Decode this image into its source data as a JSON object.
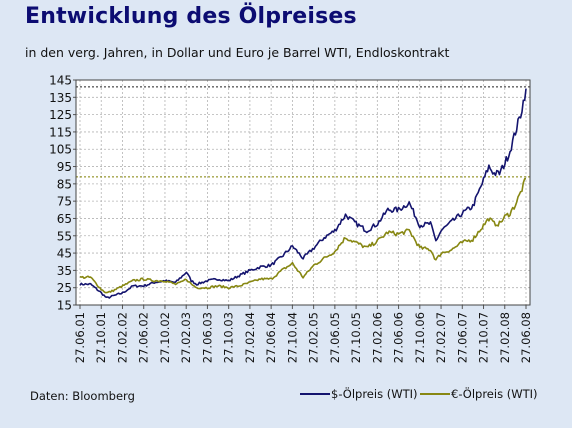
{
  "page": {
    "title": "Entwicklung des Ölpreises",
    "subtitle": "in den verg. Jahren, in Dollar und Euro je Barrel WTI, Endloskontrakt",
    "source": "Daten: Bloomberg"
  },
  "colors": {
    "background": "#dde7f4",
    "title": "#0c0c72",
    "plot_bg": "#ffffff",
    "grid": "#b4b4b4",
    "reference_line": "#808000",
    "usd": "#14146e",
    "eur": "#878712"
  },
  "chart_data": {
    "type": "line",
    "title": "Entwicklung des Ölpreises",
    "subtitle": "in den verg. Jahren, in Dollar und Euro je Barrel WTI, Endloskontrakt",
    "xlabel": "",
    "ylabel": "",
    "ylim": [
      15,
      145
    ],
    "y_ticks": [
      15,
      25,
      35,
      45,
      55,
      65,
      75,
      85,
      95,
      105,
      115,
      125,
      135,
      145
    ],
    "x_tick_labels": [
      "27.06.01",
      "27.10.01",
      "27.02.02",
      "27.06.02",
      "27.10.02",
      "27.02.03",
      "27.06.03",
      "27.10.03",
      "27.02.04",
      "27.06.04",
      "27.10.04",
      "27.02.05",
      "27.06.05",
      "27.10.05",
      "27.02.06",
      "27.06.06",
      "27.10.06",
      "27.02.07",
      "27.06.07",
      "27.10.07",
      "27.02.08",
      "27.06.08"
    ],
    "grid": true,
    "legend_position": "bottom-right",
    "reference_lines": [
      {
        "y": 141,
        "series": "$-Ölpreis (WTI)"
      },
      {
        "y": 89,
        "series": "€-Ölpreis (WTI)"
      }
    ],
    "series": [
      {
        "name": "$-Ölpreis (WTI)",
        "color": "#14146e",
        "x": [
          "27.06.01",
          "27.08.01",
          "27.10.01",
          "27.11.01",
          "27.12.01",
          "27.02.02",
          "27.04.02",
          "27.06.02",
          "27.08.02",
          "27.10.02",
          "27.12.02",
          "27.01.03",
          "27.02.03",
          "27.03.03",
          "27.04.03",
          "27.06.03",
          "27.08.03",
          "27.10.03",
          "27.12.03",
          "27.02.04",
          "27.04.04",
          "27.06.04",
          "27.08.04",
          "27.10.04",
          "27.12.04",
          "27.02.05",
          "27.04.05",
          "27.06.05",
          "27.08.05",
          "27.10.05",
          "27.12.05",
          "27.02.06",
          "27.04.06",
          "27.06.06",
          "27.08.06",
          "27.10.06",
          "27.12.06",
          "27.01.07",
          "27.02.07",
          "27.04.07",
          "27.06.07",
          "27.08.07",
          "27.10.07",
          "27.11.07",
          "27.12.07",
          "27.01.08",
          "27.02.08",
          "27.03.08",
          "27.04.08",
          "27.05.08",
          "27.06.08"
        ],
        "values": [
          27,
          27,
          22,
          19,
          20,
          22,
          26,
          26,
          28,
          29,
          28,
          31,
          34,
          29,
          27,
          29,
          30,
          29,
          32,
          35,
          37,
          38,
          43,
          49,
          42,
          48,
          54,
          58,
          67,
          62,
          58,
          62,
          70,
          70,
          74,
          61,
          62,
          52,
          58,
          63,
          68,
          72,
          87,
          95,
          91,
          91,
          97,
          104,
          115,
          125,
          140
        ]
      },
      {
        "name": "€-Ölpreis (WTI)",
        "color": "#878712",
        "x": [
          "27.06.01",
          "27.08.01",
          "27.10.01",
          "27.11.01",
          "27.12.01",
          "27.02.02",
          "27.04.02",
          "27.06.02",
          "27.08.02",
          "27.10.02",
          "27.12.02",
          "27.01.03",
          "27.02.03",
          "27.03.03",
          "27.04.03",
          "27.06.03",
          "27.08.03",
          "27.10.03",
          "27.12.03",
          "27.02.04",
          "27.04.04",
          "27.06.04",
          "27.08.04",
          "27.10.04",
          "27.12.04",
          "27.02.05",
          "27.04.05",
          "27.06.05",
          "27.08.05",
          "27.10.05",
          "27.12.05",
          "27.02.06",
          "27.04.06",
          "27.06.06",
          "27.08.06",
          "27.10.06",
          "27.12.06",
          "27.01.07",
          "27.02.07",
          "27.04.07",
          "27.06.07",
          "27.08.07",
          "27.10.07",
          "27.11.07",
          "27.12.07",
          "27.01.08",
          "27.02.08",
          "27.03.08",
          "27.04.08",
          "27.05.08",
          "27.06.08"
        ],
        "values": [
          31,
          31,
          24,
          22,
          23,
          26,
          29,
          30,
          29,
          29,
          27,
          28,
          30,
          27,
          25,
          25,
          26,
          25,
          26,
          28,
          30,
          30,
          35,
          39,
          31,
          38,
          42,
          46,
          54,
          51,
          48,
          52,
          57,
          56,
          58,
          48,
          47,
          41,
          45,
          47,
          51,
          53,
          61,
          65,
          62,
          62,
          66,
          68,
          73,
          80,
          88
        ]
      }
    ]
  }
}
